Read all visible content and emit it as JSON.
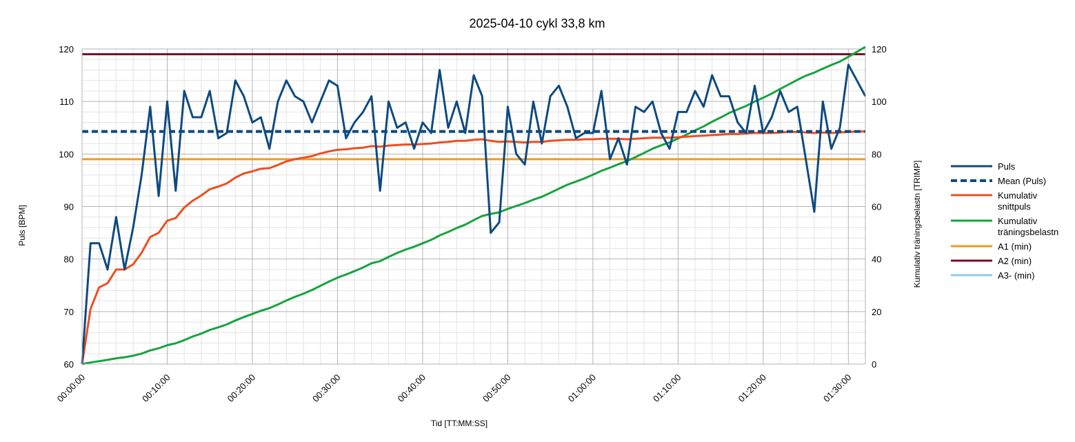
{
  "chart_data": {
    "type": "line",
    "title": "2025-04-10 cykl 33,8 km",
    "xlabel": "Tid [TT:MM:SS]",
    "ylabel": "Puls [BPM]",
    "y2label": "Kumulativ träningsbelastn [TRIMP]",
    "x_unit": "minutes",
    "xlim": [
      0,
      92
    ],
    "ylim": [
      60,
      120
    ],
    "y2lim": [
      0,
      120
    ],
    "x_ticks": [
      {
        "value": 0,
        "label": "00:00:00"
      },
      {
        "value": 10,
        "label": "00:10:00"
      },
      {
        "value": 20,
        "label": "00:20:00"
      },
      {
        "value": 30,
        "label": "00:30:00"
      },
      {
        "value": 40,
        "label": "00:40:00"
      },
      {
        "value": 50,
        "label": "00:50:00"
      },
      {
        "value": 60,
        "label": "01:00:00"
      },
      {
        "value": 70,
        "label": "01:10:00"
      },
      {
        "value": 80,
        "label": "01:20:00"
      },
      {
        "value": 90,
        "label": "01:30:00"
      }
    ],
    "y_ticks": [
      60,
      70,
      80,
      90,
      100,
      110,
      120
    ],
    "y2_ticks": [
      0,
      20,
      40,
      60,
      80,
      100,
      120
    ],
    "grid": true,
    "legend_position": "right",
    "series": [
      {
        "name": "Puls",
        "axis": "left",
        "color": "#0d4a80",
        "style": "solid",
        "x": [
          0,
          1,
          2,
          3,
          4,
          5,
          6,
          7,
          8,
          9,
          10,
          11,
          12,
          13,
          14,
          15,
          16,
          17,
          18,
          19,
          20,
          21,
          22,
          23,
          24,
          25,
          26,
          27,
          28,
          29,
          30,
          31,
          32,
          33,
          34,
          35,
          36,
          37,
          38,
          39,
          40,
          41,
          42,
          43,
          44,
          45,
          46,
          47,
          48,
          49,
          50,
          51,
          52,
          53,
          54,
          55,
          56,
          57,
          58,
          59,
          60,
          61,
          62,
          63,
          64,
          65,
          66,
          67,
          68,
          69,
          70,
          71,
          72,
          73,
          74,
          75,
          76,
          77,
          78,
          79,
          80,
          81,
          82,
          83,
          84,
          85,
          86,
          87,
          88,
          89,
          90,
          91,
          92
        ],
        "values": [
          60,
          83,
          83,
          78,
          88,
          78,
          86,
          96,
          109,
          92,
          110,
          93,
          112,
          107,
          107,
          112,
          103,
          104,
          114,
          111,
          106,
          107,
          101,
          110,
          114,
          111,
          110,
          106,
          110,
          114,
          113,
          103,
          106,
          108,
          111,
          93,
          110,
          105,
          106,
          101,
          106,
          104,
          116,
          105,
          110,
          104,
          115,
          111,
          85,
          87,
          109,
          100,
          98,
          110,
          102,
          111,
          113,
          109,
          103,
          104,
          104,
          112,
          99,
          103,
          98,
          109,
          108,
          110,
          104,
          101,
          108,
          108,
          112,
          109,
          115,
          111,
          111,
          106,
          104,
          113,
          104,
          107,
          112,
          108,
          109,
          99,
          89,
          110,
          101,
          105,
          117,
          114,
          111
        ]
      },
      {
        "name": "Mean (Puls)",
        "axis": "left",
        "color": "#0d4a80",
        "style": "dashed",
        "x": [
          0,
          92
        ],
        "values": [
          104.3,
          104.3
        ]
      },
      {
        "name": "Kumulativ snittpuls",
        "axis": "left",
        "color": "#ee4e20",
        "style": "solid",
        "x": [
          0,
          1,
          2,
          3,
          4,
          5,
          6,
          7,
          8,
          9,
          10,
          11,
          12,
          13,
          14,
          15,
          16,
          17,
          18,
          19,
          20,
          21,
          22,
          23,
          24,
          25,
          26,
          27,
          28,
          29,
          30,
          31,
          32,
          33,
          34,
          35,
          36,
          37,
          38,
          39,
          40,
          41,
          42,
          43,
          44,
          45,
          46,
          47,
          48,
          49,
          50,
          51,
          52,
          53,
          54,
          55,
          56,
          57,
          58,
          59,
          60,
          61,
          62,
          63,
          64,
          65,
          66,
          67,
          68,
          69,
          70,
          71,
          72,
          73,
          74,
          75,
          76,
          77,
          78,
          79,
          80,
          81,
          82,
          83,
          84,
          85,
          86,
          87,
          88,
          89,
          90,
          91,
          92
        ],
        "values": [
          60,
          70.5,
          74.6,
          75.4,
          78,
          78,
          79,
          81.2,
          84.2,
          85,
          87.3,
          87.8,
          89.8,
          91.1,
          92.1,
          93.3,
          93.8,
          94.4,
          95.5,
          96.3,
          96.7,
          97.2,
          97.3,
          97.9,
          98.6,
          99,
          99.3,
          99.6,
          100.1,
          100.5,
          100.8,
          100.9,
          101.1,
          101.2,
          101.5,
          101.4,
          101.6,
          101.7,
          101.8,
          101.8,
          101.9,
          102,
          102.2,
          102.3,
          102.5,
          102.5,
          102.7,
          102.8,
          102.5,
          102.3,
          102.4,
          102.3,
          102.2,
          102.3,
          102.3,
          102.5,
          102.6,
          102.7,
          102.7,
          102.8,
          102.8,
          102.9,
          102.9,
          102.9,
          102.8,
          102.9,
          103,
          103.1,
          103.1,
          103.1,
          103.2,
          103.3,
          103.4,
          103.5,
          103.6,
          103.7,
          103.8,
          103.8,
          103.9,
          104,
          104,
          104,
          104.1,
          104.2,
          104.2,
          104.1,
          104,
          104.1,
          104,
          104.1,
          104.2,
          104.3,
          104.3
        ]
      },
      {
        "name": "Kumulativ träningsbelastn",
        "axis": "right",
        "color": "#16a33e",
        "style": "solid",
        "x": [
          0,
          1,
          2,
          3,
          4,
          5,
          6,
          7,
          8,
          9,
          10,
          11,
          12,
          13,
          14,
          15,
          16,
          17,
          18,
          19,
          20,
          21,
          22,
          23,
          24,
          25,
          26,
          27,
          28,
          29,
          30,
          31,
          32,
          33,
          34,
          35,
          36,
          37,
          38,
          39,
          40,
          41,
          42,
          43,
          44,
          45,
          46,
          47,
          48,
          49,
          50,
          51,
          52,
          53,
          54,
          55,
          56,
          57,
          58,
          59,
          60,
          61,
          62,
          63,
          64,
          65,
          66,
          67,
          68,
          69,
          70,
          71,
          72,
          73,
          74,
          75,
          76,
          77,
          78,
          79,
          80,
          81,
          82,
          83,
          84,
          85,
          86,
          87,
          88,
          89,
          90,
          91,
          92
        ],
        "values": [
          0,
          0.6,
          1.1,
          1.6,
          2.2,
          2.6,
          3.2,
          4,
          5.2,
          6,
          7.2,
          7.9,
          9.1,
          10.5,
          11.6,
          13,
          14,
          15.1,
          16.6,
          17.9,
          19.1,
          20.3,
          21.3,
          22.7,
          24.2,
          25.6,
          26.8,
          28.2,
          29.8,
          31.4,
          32.9,
          34.1,
          35.4,
          36.8,
          38.4,
          39.2,
          40.8,
          42.3,
          43.6,
          44.7,
          46,
          47.3,
          49,
          50.3,
          51.8,
          53.1,
          54.8,
          56.4,
          57.2,
          57.8,
          59.1,
          60.2,
          61.3,
          62.6,
          63.7,
          65.2,
          66.8,
          68.3,
          69.5,
          70.7,
          72.1,
          73.6,
          74.8,
          76.1,
          77.3,
          78.8,
          80.4,
          82,
          83.3,
          84.4,
          85.9,
          87.4,
          89,
          90.5,
          92.3,
          93.9,
          95.6,
          97,
          98.3,
          100,
          101.4,
          103,
          104.8,
          106.5,
          108.2,
          109.8,
          111,
          112.5,
          113.9,
          115.2,
          117,
          118.9,
          120.8
        ]
      },
      {
        "name": "A1 (min)",
        "axis": "left",
        "color": "#f39a1e",
        "style": "solid",
        "x": [
          0,
          92
        ],
        "values": [
          99,
          99
        ]
      },
      {
        "name": "A2 (min)",
        "axis": "left",
        "color": "#7a0a26",
        "style": "solid",
        "x": [
          0,
          92
        ],
        "values": [
          119,
          119
        ]
      },
      {
        "name": "A3- (min)",
        "axis": "left",
        "color": "#8ccbe8",
        "style": "solid",
        "x": [],
        "values": []
      }
    ],
    "legend": [
      {
        "name": "Puls",
        "color": "#0d4a80",
        "style": "solid",
        "lines": [
          "Puls"
        ]
      },
      {
        "name": "Mean (Puls)",
        "color": "#0d4a80",
        "style": "dashed",
        "lines": [
          "Mean (Puls)"
        ]
      },
      {
        "name": "Kumulativ snittpuls",
        "color": "#ee4e20",
        "style": "solid",
        "lines": [
          "Kumulativ",
          "snittpuls"
        ]
      },
      {
        "name": "Kumulativ träningsbelastn",
        "color": "#16a33e",
        "style": "solid",
        "lines": [
          "Kumulativ",
          "träningsbelastn"
        ]
      },
      {
        "name": "A1 (min)",
        "color": "#f39a1e",
        "style": "solid",
        "lines": [
          "A1 (min)"
        ]
      },
      {
        "name": "A2 (min)",
        "color": "#7a0a26",
        "style": "solid",
        "lines": [
          "A2 (min)"
        ]
      },
      {
        "name": "A3- (min)",
        "color": "#8ccbe8",
        "style": "solid",
        "lines": [
          "A3- (min)"
        ]
      }
    ]
  }
}
